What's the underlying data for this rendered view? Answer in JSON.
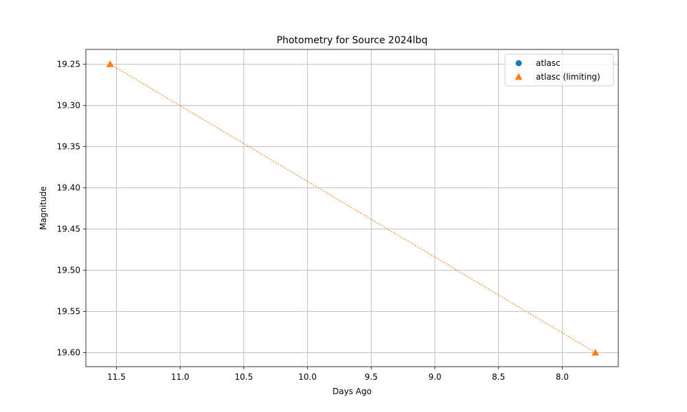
{
  "chart_data": {
    "type": "scatter",
    "title": "Photometry for Source 2024lbq",
    "xlabel": "Days Ago",
    "ylabel": "Magnitude",
    "x_inverted": true,
    "y_inverted": true,
    "xlim": [
      11.74,
      7.56
    ],
    "ylim": [
      19.6172,
      19.2322
    ],
    "x_ticks": [
      11.5,
      11.0,
      10.5,
      10.0,
      9.5,
      9.0,
      8.5,
      8.0
    ],
    "x_tick_labels": [
      "11.5",
      "11.0",
      "10.5",
      "10.0",
      "9.5",
      "9.0",
      "8.5",
      "8.0"
    ],
    "y_ticks": [
      19.25,
      19.3,
      19.35,
      19.4,
      19.45,
      19.5,
      19.55,
      19.6
    ],
    "y_tick_labels": [
      "19.25",
      "19.30",
      "19.35",
      "19.40",
      "19.45",
      "19.50",
      "19.55",
      "19.60"
    ],
    "grid": true,
    "legend_position": "top-right",
    "series": [
      {
        "name": "atlasc",
        "marker": "circle",
        "color": "#1f77b4",
        "x": [],
        "y": []
      },
      {
        "name": "atlasc (limiting)",
        "marker": "triangle",
        "color": "#ff7f0e",
        "line_style": "dotted",
        "x": [
          11.55,
          7.74
        ],
        "y": [
          19.25,
          19.6
        ]
      }
    ]
  }
}
